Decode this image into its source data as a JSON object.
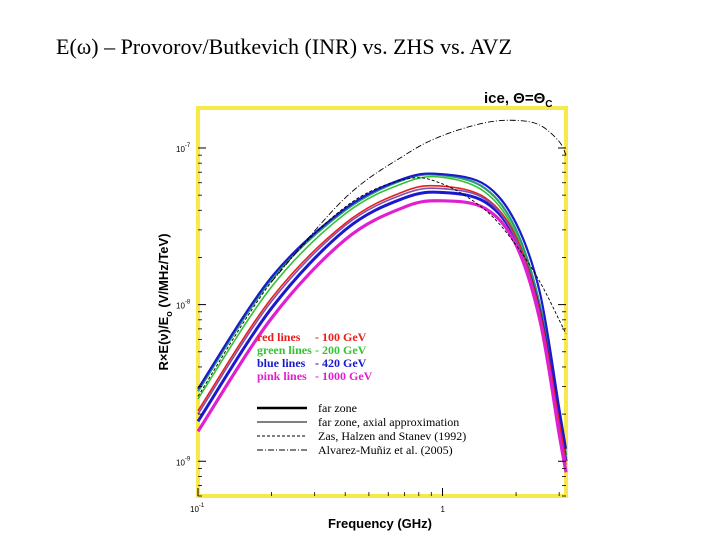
{
  "slide": {
    "title": "E(ω) – Provorov/Butkevich (INR) vs. ZHS vs. AVZ"
  },
  "chart_data": {
    "type": "line",
    "annotation": {
      "text": "ice, Θ=Θ",
      "subscript": "C"
    },
    "xlabel": "Frequency (GHz)",
    "ylabel": {
      "prefix": "R×E(ν)/E",
      "subscript": "o",
      "suffix": " (V/MHz/TeV)"
    },
    "x_scale": "log",
    "y_scale": "log",
    "xlim": [
      0.1,
      3.2
    ],
    "ylim": [
      6e-10,
      1.8e-07
    ],
    "x_ticks": [
      {
        "value": 0.1,
        "base": "10",
        "exp": "-1"
      },
      {
        "value": 1,
        "base": "1",
        "exp": ""
      }
    ],
    "y_ticks": [
      {
        "value": 1e-07,
        "base": "10",
        "exp": "-7"
      },
      {
        "value": 1e-08,
        "base": "10",
        "exp": "-8"
      },
      {
        "value": 1e-09,
        "base": "10",
        "exp": "-9"
      }
    ],
    "frame_color": "#f7e94a",
    "legend_colors": [
      {
        "label": "red lines",
        "value": "- 100 GeV",
        "color": "#e8201c"
      },
      {
        "label": "green lines",
        "value": "- 200 GeV",
        "color": "#36c236"
      },
      {
        "label": "blue lines",
        "value": "- 420 GeV",
        "color": "#1a1acc"
      },
      {
        "label": "pink lines",
        "value": "- 1000 GeV",
        "color": "#e020d0"
      }
    ],
    "legend_styles": [
      {
        "label": "far zone",
        "style": "thick"
      },
      {
        "label": "far zone, axial approximation",
        "style": "solid"
      },
      {
        "label": "Zas, Halzen and Stanev (1992)",
        "style": "dashed"
      },
      {
        "label": "Alvarez-Muñiz et al. (2005)",
        "style": "dashdot"
      }
    ],
    "series": [
      {
        "color": "#2a9a78",
        "style": "solid",
        "width": 2.2,
        "x": [
          0.1,
          0.2,
          0.4,
          0.7,
          1.0,
          1.5,
          2.0,
          2.5,
          3.0,
          3.2
        ],
        "y": [
          2.8e-09,
          1.45e-08,
          4e-08,
          6.3e-08,
          6.7e-08,
          5.5e-08,
          3e-08,
          1e-08,
          2e-09,
          1.1e-09
        ]
      },
      {
        "color": "#36c236",
        "style": "solid",
        "width": 1.6,
        "x": [
          0.1,
          0.2,
          0.4,
          0.7,
          1.0,
          1.5,
          2.0,
          2.5,
          3.0,
          3.2
        ],
        "y": [
          2.5e-09,
          1.3e-08,
          3.8e-08,
          6e-08,
          6.5e-08,
          5.2e-08,
          2.8e-08,
          9e-09,
          1.8e-09,
          1e-09
        ]
      },
      {
        "color": "#1a1acc",
        "style": "solid",
        "width": 2.2,
        "x": [
          0.1,
          0.2,
          0.4,
          0.7,
          1.0,
          1.5,
          2.0,
          2.5,
          3.0,
          3.2
        ],
        "y": [
          2.9e-09,
          1.5e-08,
          4.1e-08,
          6.4e-08,
          6.8e-08,
          5.8e-08,
          3.3e-08,
          1.2e-08,
          2.2e-09,
          1.2e-09
        ]
      },
      {
        "color": "#1a1acc",
        "style": "solid",
        "width": 3.0,
        "x": [
          0.1,
          0.2,
          0.4,
          0.7,
          1.0,
          1.5,
          2.0,
          2.5,
          3.0,
          3.2
        ],
        "y": [
          1.8e-09,
          9.5e-09,
          3e-08,
          4.8e-08,
          5.2e-08,
          4.5e-08,
          2.6e-08,
          9e-09,
          1.8e-09,
          1e-09
        ]
      },
      {
        "color": "#e8201c",
        "style": "solid",
        "width": 1.6,
        "x": [
          0.1,
          0.2,
          0.4,
          0.7,
          1.0,
          1.5,
          2.0,
          2.5,
          3.0,
          3.2
        ],
        "y": [
          2.1e-09,
          1.1e-08,
          3.3e-08,
          5.3e-08,
          5.7e-08,
          4.8e-08,
          2.7e-08,
          9e-09,
          1.8e-09,
          1e-09
        ]
      },
      {
        "color": "#8050b0",
        "style": "solid",
        "width": 1.6,
        "x": [
          0.1,
          0.2,
          0.4,
          0.7,
          1.0,
          1.5,
          2.0,
          2.5,
          3.0,
          3.2
        ],
        "y": [
          2e-09,
          1.05e-08,
          3.2e-08,
          5.1e-08,
          5.5e-08,
          4.7e-08,
          2.6e-08,
          8.5e-09,
          1.6e-09,
          9.5e-10
        ]
      },
      {
        "color": "#e020d0",
        "style": "solid",
        "width": 3.2,
        "x": [
          0.1,
          0.2,
          0.4,
          0.7,
          1.0,
          1.5,
          2.0,
          2.5,
          3.0,
          3.2
        ],
        "y": [
          1.55e-09,
          8.2e-09,
          2.6e-08,
          4.2e-08,
          4.6e-08,
          4.1e-08,
          2.4e-08,
          8e-09,
          1.5e-09,
          8.5e-10
        ]
      },
      {
        "color": "#000000",
        "style": "dashdot",
        "width": 0.9,
        "x": [
          0.2,
          0.4,
          0.7,
          1.0,
          1.5,
          2.0,
          2.5,
          3.0,
          3.2
        ],
        "y": [
          1.4e-08,
          4.8e-08,
          9e-08,
          1.2e-07,
          1.45e-07,
          1.5e-07,
          1.4e-07,
          1.1e-07,
          9e-08
        ]
      },
      {
        "color": "#000000",
        "style": "dashed",
        "width": 0.9,
        "x": [
          0.1,
          0.2,
          0.4,
          0.7,
          1.0,
          1.5,
          2.0,
          2.5,
          3.0,
          3.2
        ],
        "y": [
          2.6e-09,
          1.4e-08,
          4.2e-08,
          6.3e-08,
          5.9e-08,
          4e-08,
          2.4e-08,
          1.4e-08,
          8e-09,
          6.5e-09
        ]
      }
    ]
  }
}
